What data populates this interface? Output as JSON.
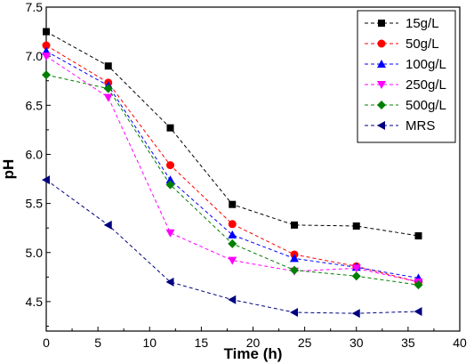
{
  "chart_data": {
    "type": "line",
    "title": "",
    "xlabel": "Time (h)",
    "ylabel": "pH",
    "xlim": [
      0,
      40
    ],
    "ylim": [
      4.2,
      7.5
    ],
    "xticks": [
      0,
      5,
      10,
      15,
      20,
      25,
      30,
      35,
      40
    ],
    "yticks": [
      4.5,
      5.0,
      5.5,
      6.0,
      6.5,
      7.0,
      7.5
    ],
    "x": [
      0,
      6,
      12,
      18,
      24,
      30,
      36
    ],
    "legend_position": "top-right",
    "grid": false,
    "series": [
      {
        "name": "15g/L",
        "color": "#000000",
        "marker": "square",
        "values": [
          7.25,
          6.9,
          6.27,
          5.49,
          5.28,
          5.27,
          5.17
        ]
      },
      {
        "name": "50g/L",
        "color": "#ff0000",
        "marker": "circle",
        "values": [
          7.11,
          6.73,
          5.89,
          5.29,
          4.98,
          4.86,
          4.7
        ]
      },
      {
        "name": "100g/L",
        "color": "#0000ff",
        "marker": "triangle-up",
        "values": [
          7.05,
          6.7,
          5.74,
          5.18,
          4.94,
          4.85,
          4.74
        ]
      },
      {
        "name": "250g/L",
        "color": "#ff00ff",
        "marker": "triangle-down",
        "values": [
          7.0,
          6.58,
          5.2,
          4.92,
          4.81,
          4.84,
          4.7
        ]
      },
      {
        "name": "500g/L",
        "color": "#008000",
        "marker": "diamond",
        "values": [
          6.81,
          6.67,
          5.69,
          5.09,
          4.82,
          4.76,
          4.67
        ]
      },
      {
        "name": "MRS",
        "color": "#000080",
        "marker": "triangle-left",
        "values": [
          5.74,
          5.28,
          4.7,
          4.52,
          4.39,
          4.38,
          4.4
        ]
      }
    ]
  }
}
